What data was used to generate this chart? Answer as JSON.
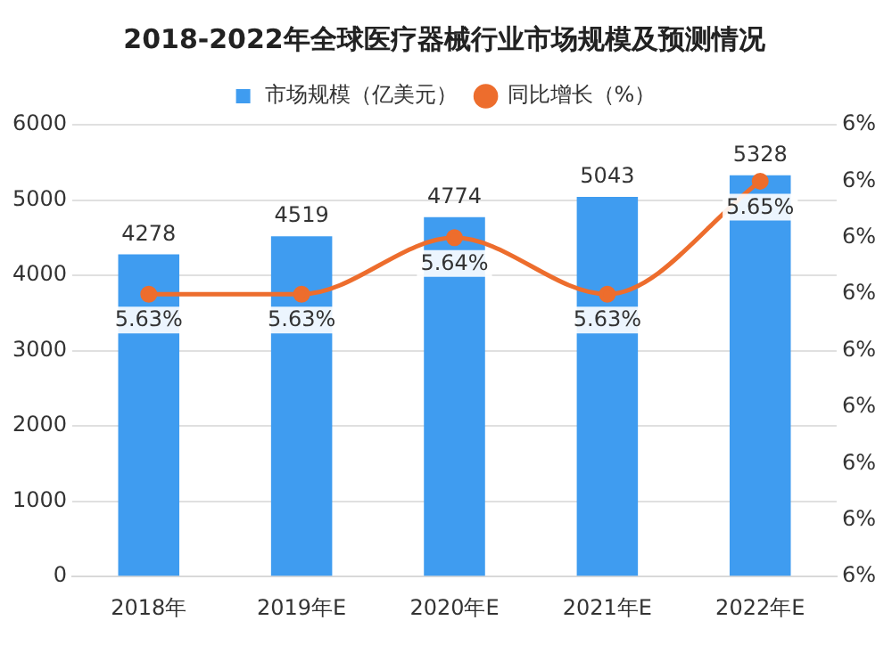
{
  "chart_data": {
    "type": "bar",
    "title": "2018-2022年全球医疗器械行业市场规模及预测情况",
    "categories": [
      "2018年",
      "2019年E",
      "2020年E",
      "2021年E",
      "2022年E"
    ],
    "series": [
      {
        "name": "市场规模（亿美元）",
        "color": "#3f9cf0",
        "values": [
          4278,
          4519,
          4774,
          5043,
          5328
        ],
        "value_labels": [
          "4278",
          "4519",
          "4774",
          "5043",
          "5328"
        ]
      },
      {
        "name": "同比增长（%）",
        "type": "line",
        "axis": "y2",
        "color": "#ed6d2d",
        "values": [
          5.63,
          5.63,
          5.64,
          5.63,
          5.65
        ],
        "value_labels": [
          "5.63%",
          "5.63%",
          "5.64%",
          "5.63%",
          "5.65%"
        ]
      }
    ],
    "ylim": [
      0,
      6000
    ],
    "yticks": [
      0,
      1000,
      2000,
      3000,
      4000,
      5000,
      6000
    ],
    "y2lim": [
      5.58,
      5.66
    ],
    "y2ticks": [
      {
        "value": 5.58,
        "label": "6%"
      },
      {
        "value": 5.59,
        "label": "6%"
      },
      {
        "value": 5.6,
        "label": "6%"
      },
      {
        "value": 5.61,
        "label": "6%"
      },
      {
        "value": 5.62,
        "label": "6%"
      },
      {
        "value": 5.63,
        "label": "6%"
      },
      {
        "value": 5.64,
        "label": "6%"
      },
      {
        "value": 5.65,
        "label": "6%"
      },
      {
        "value": 5.66,
        "label": "6%"
      }
    ],
    "grid": "y",
    "legend": "top",
    "marker": "circle",
    "line_style": "solid"
  }
}
